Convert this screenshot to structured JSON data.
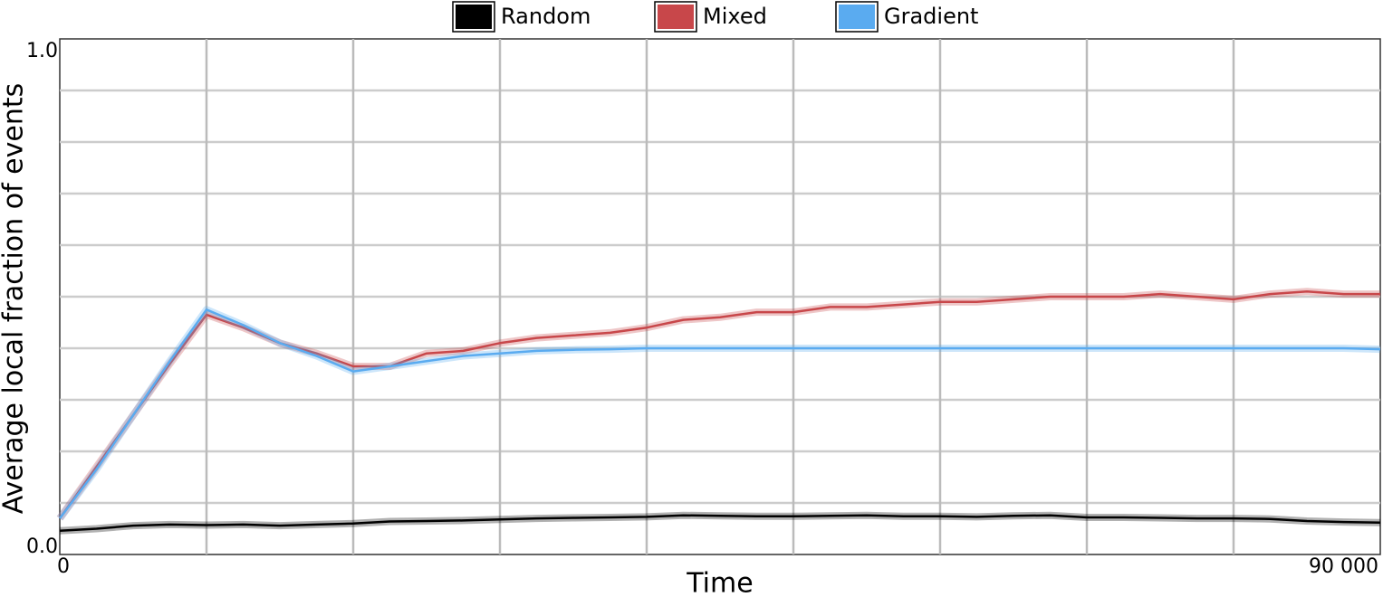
{
  "chart_data": {
    "type": "line",
    "xlabel": "Time",
    "ylabel": "Average local fraction of events",
    "x": [
      0,
      2500,
      5000,
      7500,
      10000,
      12500,
      15000,
      17500,
      20000,
      22500,
      25000,
      27500,
      30000,
      32500,
      35000,
      37500,
      40000,
      42500,
      45000,
      47500,
      50000,
      52500,
      55000,
      57500,
      60000,
      62500,
      65000,
      67500,
      70000,
      72500,
      75000,
      77500,
      80000,
      82500,
      85000,
      87500,
      90000
    ],
    "series": [
      {
        "name": "Random",
        "color": "#000000",
        "values": [
          0.046,
          0.05,
          0.056,
          0.058,
          0.057,
          0.058,
          0.056,
          0.058,
          0.06,
          0.064,
          0.065,
          0.066,
          0.068,
          0.07,
          0.071,
          0.072,
          0.073,
          0.076,
          0.075,
          0.074,
          0.074,
          0.075,
          0.076,
          0.074,
          0.074,
          0.073,
          0.075,
          0.076,
          0.072,
          0.072,
          0.071,
          0.07,
          0.07,
          0.069,
          0.065,
          0.063,
          0.062
        ]
      },
      {
        "name": "Mixed",
        "color": "#c8474a",
        "values": [
          0.07,
          0.17,
          0.27,
          0.37,
          0.465,
          0.44,
          0.41,
          0.39,
          0.365,
          0.365,
          0.39,
          0.395,
          0.41,
          0.42,
          0.425,
          0.43,
          0.44,
          0.455,
          0.46,
          0.47,
          0.47,
          0.48,
          0.48,
          0.485,
          0.49,
          0.49,
          0.495,
          0.5,
          0.5,
          0.5,
          0.505,
          0.5,
          0.495,
          0.505,
          0.51,
          0.505,
          0.505
        ]
      },
      {
        "name": "Gradient",
        "color": "#5aabf0",
        "values": [
          0.07,
          0.165,
          0.27,
          0.375,
          0.475,
          0.445,
          0.41,
          0.385,
          0.355,
          0.365,
          0.375,
          0.385,
          0.39,
          0.395,
          0.397,
          0.398,
          0.4,
          0.4,
          0.4,
          0.4,
          0.4,
          0.4,
          0.4,
          0.4,
          0.4,
          0.4,
          0.4,
          0.4,
          0.4,
          0.4,
          0.4,
          0.4,
          0.4,
          0.4,
          0.4,
          0.4,
          0.398
        ]
      }
    ],
    "xlim": [
      0,
      90000
    ],
    "ylim": [
      0,
      1
    ],
    "xticks": [
      0,
      {
        "value": 90000,
        "label": "90 000"
      }
    ],
    "yticks": [
      {
        "value": 0,
        "label": "0.0"
      },
      {
        "value": 1,
        "label": "1.0"
      }
    ],
    "xgrid": [
      10000,
      20000,
      30000,
      40000,
      50000,
      60000,
      70000,
      80000
    ],
    "ygrid": [
      0.1,
      0.2,
      0.3,
      0.4,
      0.5,
      0.6,
      0.7,
      0.8,
      0.9
    ],
    "grid": true
  }
}
